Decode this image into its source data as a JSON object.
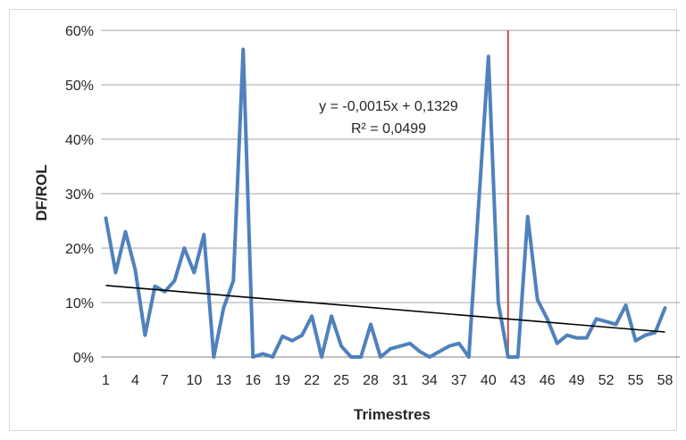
{
  "chart_data": {
    "type": "line",
    "xlabel": "Trimestres",
    "ylabel": "DF/ROL",
    "ylim": [
      0,
      0.6
    ],
    "yticks": [
      0,
      0.1,
      0.2,
      0.3,
      0.4,
      0.5,
      0.6
    ],
    "ytick_labels": [
      "0%",
      "10%",
      "20%",
      "30%",
      "40%",
      "50%",
      "60%"
    ],
    "xticks": [
      "1",
      "4",
      "7",
      "10",
      "13",
      "16",
      "19",
      "22",
      "25",
      "28",
      "31",
      "34",
      "37",
      "40",
      "43",
      "46",
      "49",
      "52",
      "55",
      "58"
    ],
    "grid": "horizontal",
    "legend": "none",
    "colors": {
      "series": "#4f81bd",
      "trendline": "#000000",
      "marker": "#c0504d",
      "grid": "#a6a6a6"
    },
    "series": [
      {
        "x": [
          1,
          2,
          3,
          4,
          5,
          6,
          7,
          8,
          9,
          10,
          11,
          12,
          13,
          14,
          15,
          16,
          17,
          18,
          19,
          20,
          21,
          22,
          23,
          24,
          25,
          26,
          27,
          28,
          29,
          30,
          31,
          32,
          33,
          34,
          35,
          36,
          37,
          38,
          39,
          40,
          41,
          42,
          43,
          44,
          45,
          46,
          47,
          48,
          49,
          50,
          51,
          52,
          53,
          54,
          55,
          56,
          57,
          58
        ],
        "values": [
          0.255,
          0.155,
          0.23,
          0.16,
          0.04,
          0.13,
          0.12,
          0.14,
          0.2,
          0.155,
          0.225,
          0.0,
          0.09,
          0.14,
          0.565,
          0.0,
          0.006,
          0.0,
          0.038,
          0.03,
          0.04,
          0.075,
          0.0,
          0.075,
          0.02,
          0.0,
          0.0,
          0.06,
          0.0,
          0.015,
          0.02,
          0.025,
          0.01,
          0.0,
          0.01,
          0.02,
          0.025,
          0.0,
          0.28,
          0.552,
          0.1,
          0.0,
          0.0,
          0.258,
          0.105,
          0.07,
          0.025,
          0.04,
          0.035,
          0.035,
          0.07,
          0.065,
          0.06,
          0.095,
          0.03,
          0.04,
          0.045,
          0.09
        ]
      }
    ],
    "trendline": {
      "slope": -0.0015,
      "intercept": 0.1329,
      "equation": "y = -0,0015x + 0,1329",
      "r2": "R² = 0,0499"
    },
    "vertical_marker_x": 42
  }
}
